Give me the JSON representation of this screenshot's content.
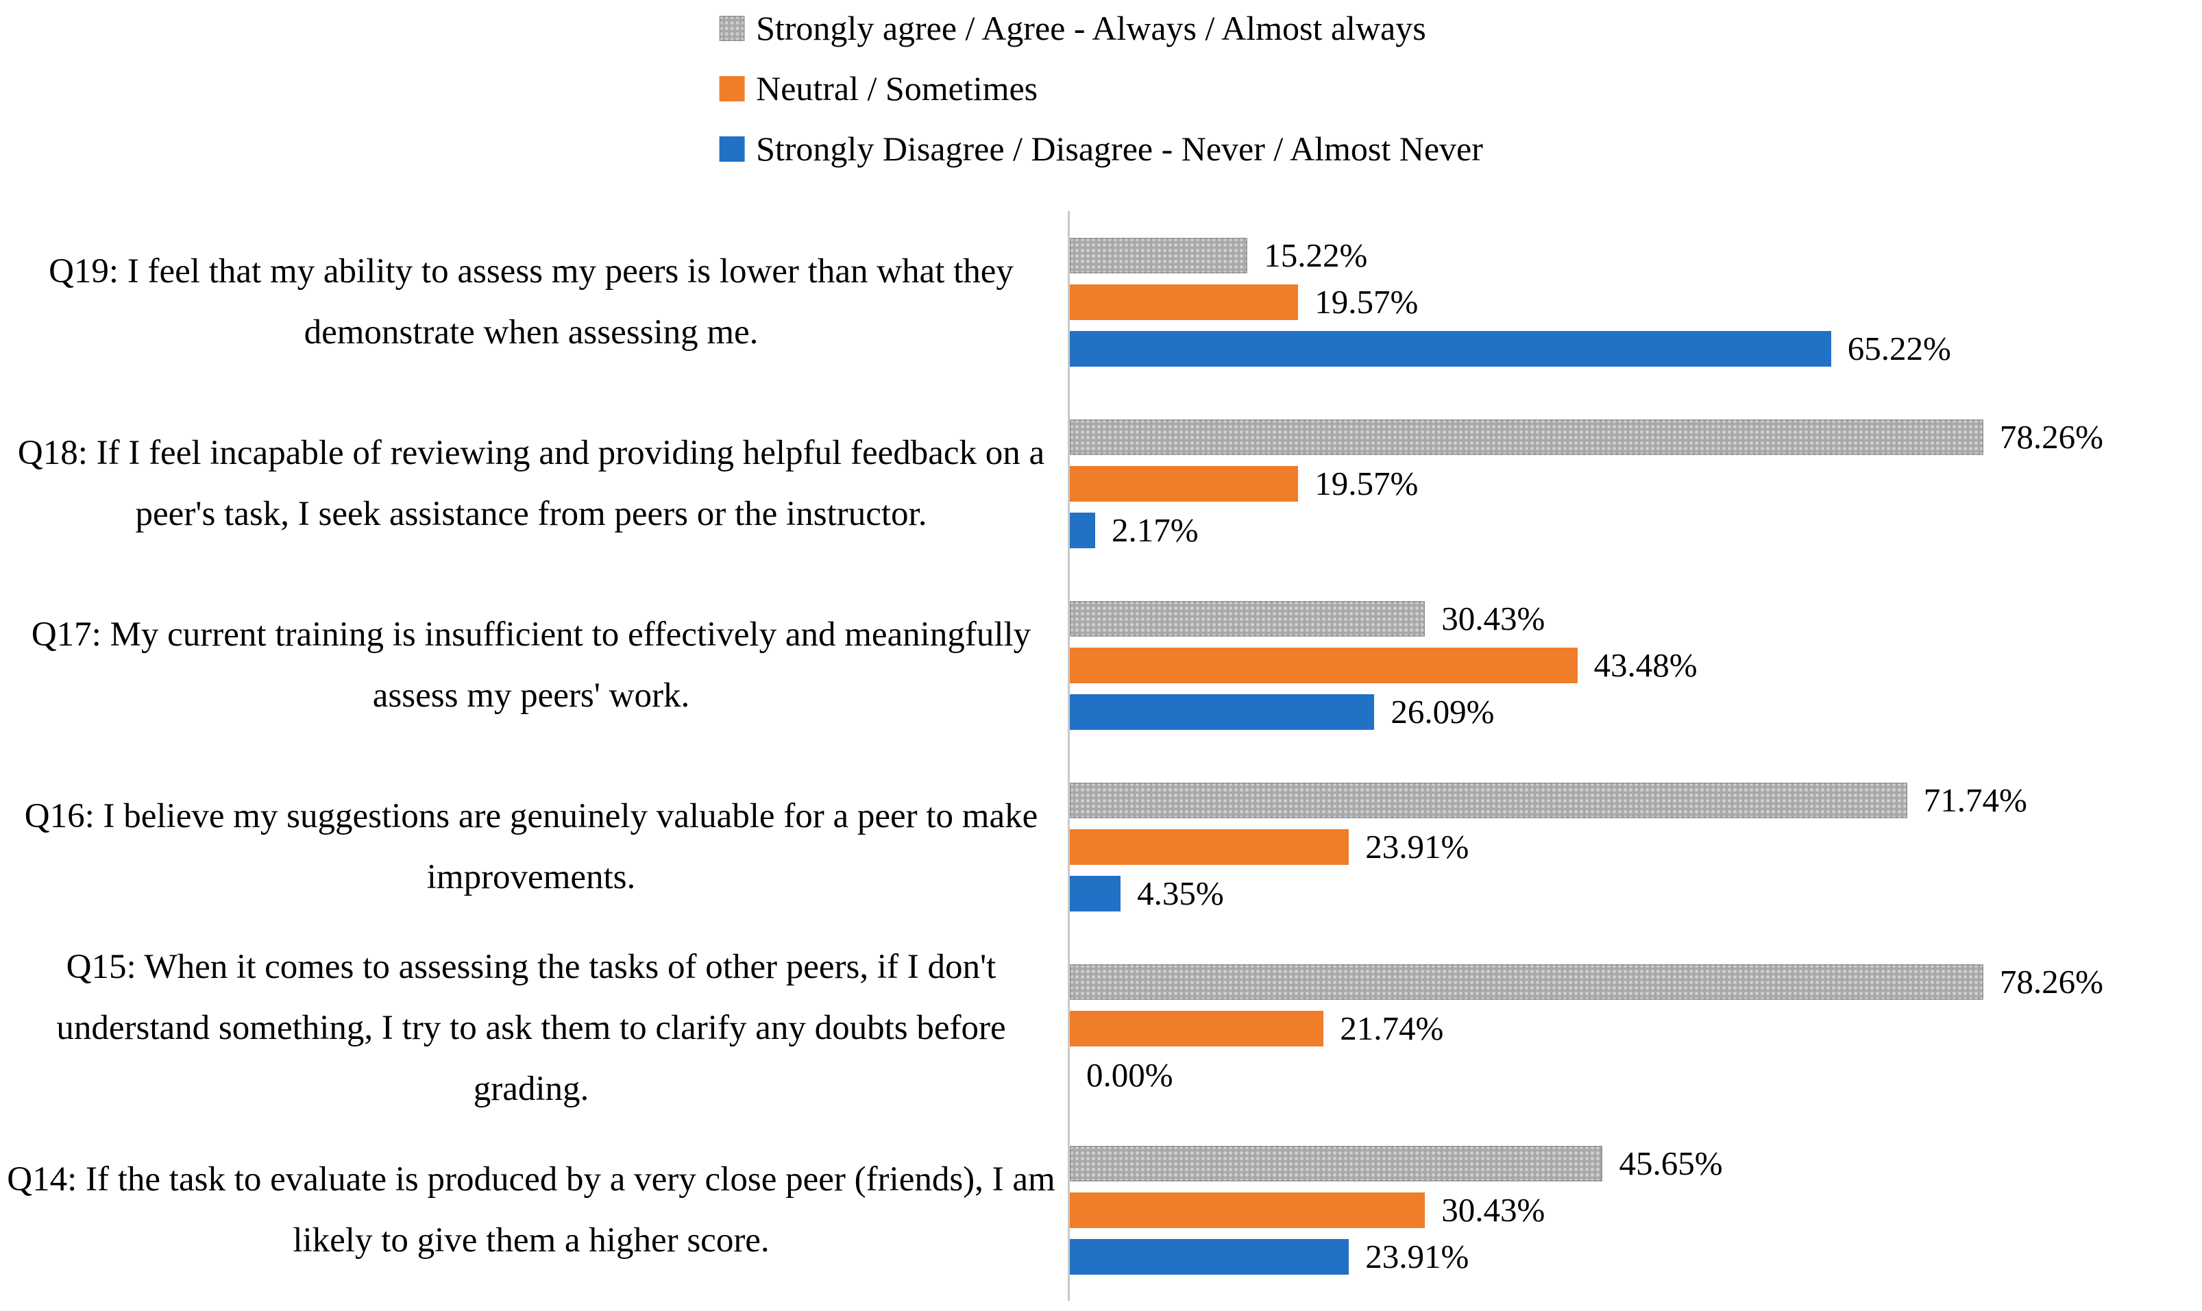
{
  "chart_data": {
    "type": "bar",
    "orientation": "horizontal",
    "title": "",
    "xlabel": "",
    "ylabel": "",
    "value_suffix": "%",
    "xlim": [
      0,
      97
    ],
    "grid": false,
    "axis_ticks": "none",
    "legend_position": "top-center",
    "categories": [
      "Q19: I feel that my ability to assess my peers is lower than what they demonstrate when assessing me.",
      "Q18: If I feel incapable of reviewing and providing helpful feedback on a peer's task, I seek assistance from peers or the instructor.",
      "Q17: My current training is insufficient to effectively and meaningfully assess my peers' work.",
      "Q16: I believe my suggestions are genuinely valuable for a peer to make improvements.",
      "Q15: When it comes to assessing the tasks of other peers, if I don't understand something, I try to ask them to clarify any doubts before grading.",
      "Q14: If the task to evaluate is produced by a very close peer (friends), I am likely to give them a higher score."
    ],
    "series": [
      {
        "key": "agree",
        "name": "Strongly agree / Agree - Always / Almost always",
        "color": "#a8a8a8",
        "pattern": "dotted",
        "values": [
          15.22,
          78.26,
          30.43,
          71.74,
          78.26,
          45.65
        ],
        "labels": [
          "15.22%",
          "78.26%",
          "30.43%",
          "71.74%",
          "78.26%",
          "45.65%"
        ]
      },
      {
        "key": "neutral",
        "name": "Neutral / Sometimes",
        "color": "#f07d29",
        "pattern": "solid",
        "values": [
          19.57,
          19.57,
          43.48,
          23.91,
          21.74,
          30.43
        ],
        "labels": [
          "19.57%",
          "19.57%",
          "43.48%",
          "23.91%",
          "21.74%",
          "30.43%"
        ]
      },
      {
        "key": "disagree",
        "name": "Strongly Disagree / Disagree - Never / Almost Never",
        "color": "#2171c7",
        "pattern": "solid",
        "values": [
          65.22,
          2.17,
          26.09,
          4.35,
          0.0,
          23.91
        ],
        "labels": [
          "65.22%",
          "2.17%",
          "26.09%",
          "4.35%",
          "0.00%",
          "23.91%"
        ]
      }
    ],
    "axis_line_color": "#c9c9c9",
    "text_color": "#000000"
  }
}
